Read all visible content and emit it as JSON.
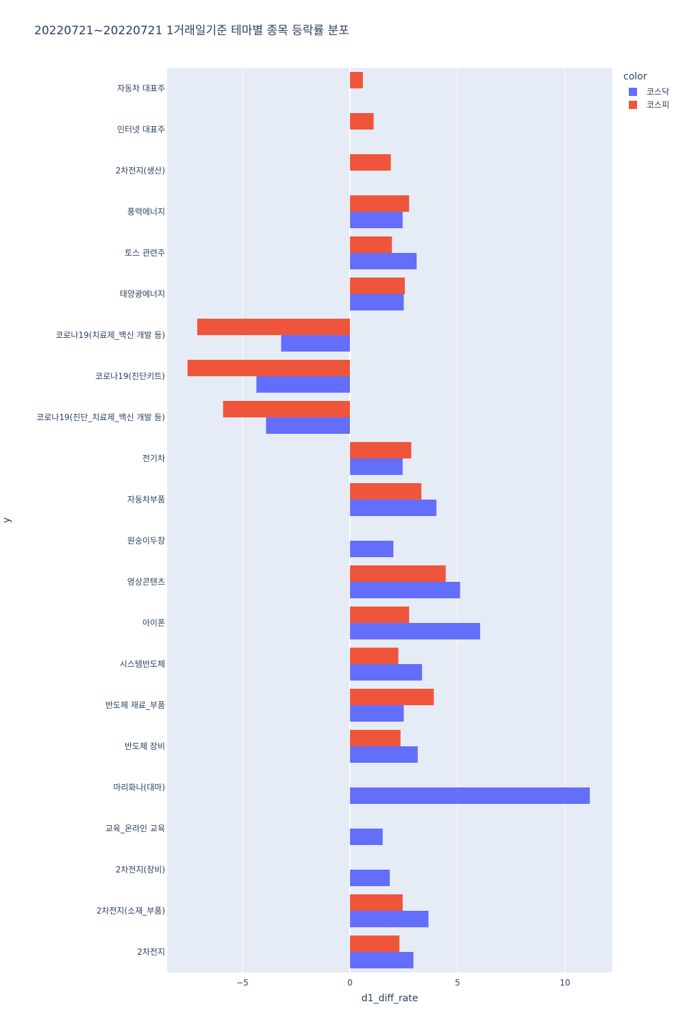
{
  "chart_data": {
    "type": "bar",
    "orientation": "horizontal",
    "title": "20220721~20220721 1거래일기준 테마별 종목 등락률 분포",
    "xlabel": "d1_diff_rate",
    "ylabel": "y",
    "xlim": [
      -8.5,
      12.2
    ],
    "xticks": [
      -5,
      0,
      5,
      10
    ],
    "xtick_labels": [
      "−5",
      "0",
      "5",
      "10"
    ],
    "grid": true,
    "legend_title": "color",
    "legend_position": "top-right",
    "categories": [
      "자동차 대표주",
      "인터넷 대표주",
      "2차전지(생산)",
      "풍력에너지",
      "토스 관련주",
      "태양광에너지",
      "코로나19(치료제_백신 개발 등)",
      "코로나19(진단키트)",
      "코로나19(진단_치료제_백신 개발 등)",
      "전기차",
      "자동차부품",
      "원숭이두창",
      "영상콘텐츠",
      "아이폰",
      "시스템반도체",
      "반도체 재료_부품",
      "반도체 장비",
      "마리화나(대마)",
      "교육_온라인 교육",
      "2차전지(장비)",
      "2차전지(소재_부품)",
      "2차전지"
    ],
    "series": [
      {
        "name": "코스닥",
        "color": "#636efa",
        "values": [
          null,
          null,
          null,
          2.45,
          3.1,
          2.5,
          -3.2,
          -4.35,
          -3.9,
          2.45,
          4.02,
          2.02,
          5.12,
          6.05,
          3.35,
          2.5,
          3.15,
          11.15,
          1.52,
          1.85,
          3.65,
          2.95
        ]
      },
      {
        "name": "코스피",
        "color": "#ef553b",
        "values": [
          0.6,
          1.1,
          1.9,
          2.75,
          1.95,
          2.55,
          -7.1,
          -7.55,
          -5.9,
          2.85,
          3.32,
          null,
          4.45,
          2.75,
          2.25,
          3.9,
          2.35,
          null,
          null,
          null,
          2.45,
          2.3
        ]
      }
    ]
  }
}
